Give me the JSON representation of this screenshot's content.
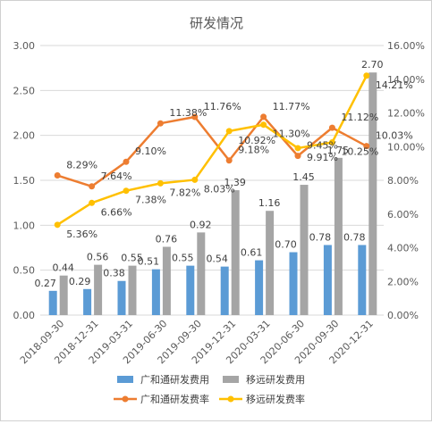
{
  "chart_data": {
    "type": "bar+line",
    "title": "研发情况",
    "categories": [
      "2018-09-30",
      "2018-12-31",
      "2019-03-31",
      "2019-06-30",
      "2019-09-30",
      "2019-12-31",
      "2020-03-31",
      "2020-06-30",
      "2020-09-30",
      "2020-12-31"
    ],
    "left_axis": {
      "min": 0,
      "max": 3,
      "step": 0.5,
      "tick_labels": [
        "0.00",
        "0.50",
        "1.00",
        "1.50",
        "2.00",
        "2.50",
        "3.00"
      ]
    },
    "right_axis": {
      "min": 0,
      "max": 16,
      "step": 2,
      "tick_labels": [
        "0.00%",
        "2.00%",
        "4.00%",
        "6.00%",
        "8.00%",
        "10.00%",
        "12.00%",
        "14.00%",
        "16.00%"
      ]
    },
    "grid": true,
    "legend_position": "bottom",
    "bar_series": [
      {
        "name": "广和通研发费用",
        "color": "#5B9BD5",
        "values": [
          0.27,
          0.29,
          0.38,
          0.51,
          0.55,
          0.54,
          0.61,
          0.7,
          0.78,
          0.78
        ],
        "labels": [
          "0.27",
          "0.29",
          "0.38",
          "0.51",
          "0.55",
          "0.54",
          "0.61",
          "0.70",
          "0.78",
          "0.78"
        ]
      },
      {
        "name": "移远研发费用",
        "color": "#A5A5A5",
        "values": [
          0.44,
          0.56,
          0.55,
          0.76,
          0.92,
          1.39,
          1.16,
          1.45,
          1.75,
          2.7
        ],
        "labels": [
          "0.44",
          "0.56",
          "0.55",
          "0.76",
          "0.92",
          "1.39",
          "1.16",
          "1.45",
          "1.75",
          "2.70"
        ]
      }
    ],
    "line_series": [
      {
        "name": "广和通研发费率",
        "color": "#ED7D31",
        "values": [
          8.29,
          7.64,
          9.1,
          11.38,
          11.76,
          9.18,
          11.77,
          9.45,
          11.12,
          10.03
        ],
        "labels": [
          "8.29%",
          "7.64%",
          "9.10%",
          "11.38%",
          "11.76%",
          "9.18%",
          "11.77%",
          "9.45%",
          "11.12%",
          "10.03%"
        ]
      },
      {
        "name": "移远研发费率",
        "color": "#FFC000",
        "values": [
          5.36,
          6.66,
          7.38,
          7.82,
          8.03,
          10.92,
          11.3,
          9.91,
          10.25,
          14.21
        ],
        "labels": [
          "5.36%",
          "6.66%",
          "7.38%",
          "7.82%",
          "8.03%",
          "10.92%",
          "11.30%",
          "9.91%",
          "10.25%",
          "14.21%"
        ]
      }
    ]
  }
}
